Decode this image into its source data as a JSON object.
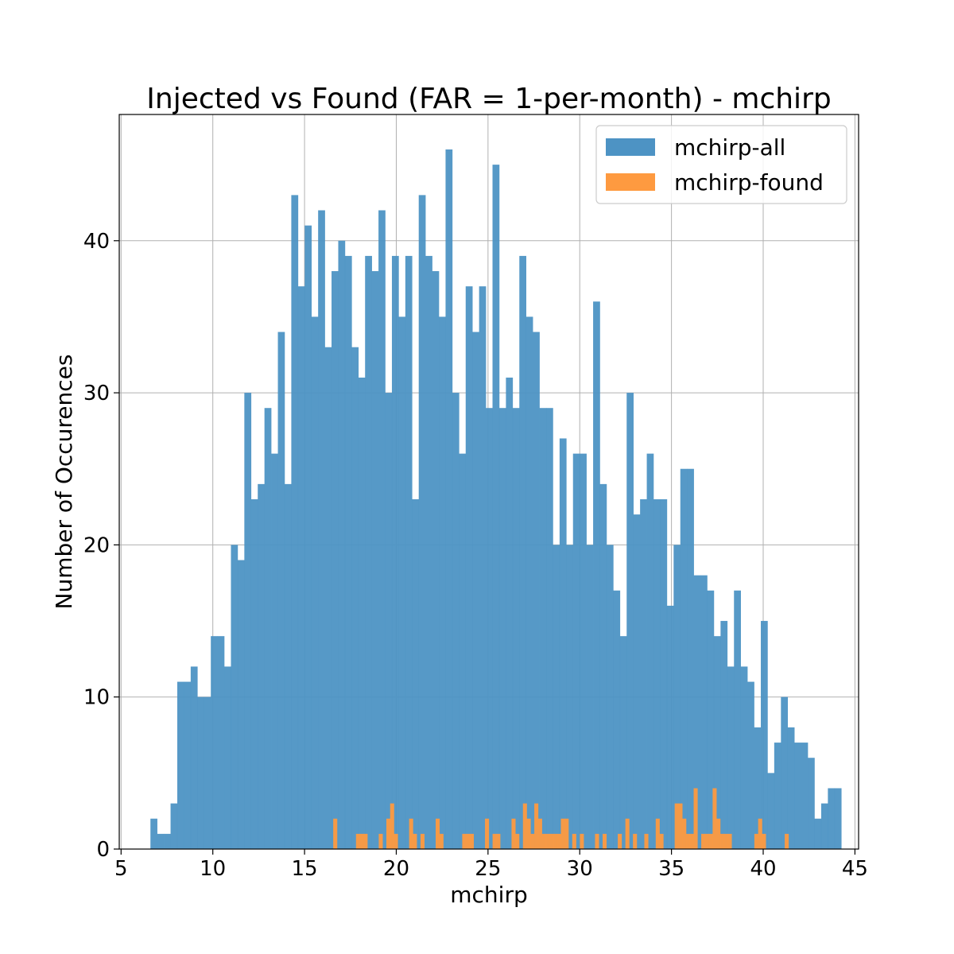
{
  "chart_data": {
    "type": "bar",
    "title": "Injected vs Found (FAR = 1-per-month) - mchirp",
    "xlabel": "mchirp",
    "ylabel": "Number of Occurences",
    "xlim": [
      4.9,
      45.2
    ],
    "ylim": [
      0,
      48.3
    ],
    "xticks": [
      5,
      10,
      15,
      20,
      25,
      30,
      35,
      40,
      45
    ],
    "yticks": [
      0,
      10,
      20,
      30,
      40
    ],
    "grid": true,
    "legend_position": "top-right",
    "bin_start": 6.6,
    "bin_width": 0.3656,
    "series": [
      {
        "name": "mchirp-all",
        "color": "#4d93c4",
        "values": [
          2,
          1,
          1,
          3,
          11,
          11,
          12,
          10,
          10,
          14,
          14,
          12,
          20,
          19,
          30,
          23,
          24,
          29,
          26,
          34,
          24,
          43,
          37,
          41,
          35,
          42,
          33,
          38,
          40,
          39,
          33,
          31,
          39,
          38,
          42,
          30,
          39,
          35,
          39,
          23,
          43,
          39,
          38,
          35,
          46,
          30,
          26,
          37,
          34,
          37,
          29,
          45,
          29,
          31,
          29,
          39,
          35,
          34,
          29,
          29,
          20,
          27,
          20,
          26,
          26,
          20,
          36,
          24,
          20,
          17,
          14,
          30,
          22,
          23,
          26,
          23,
          23,
          16,
          20,
          25,
          25,
          18,
          18,
          17,
          14,
          15,
          12,
          17,
          12,
          11,
          8,
          15,
          5,
          7,
          10,
          8,
          7,
          7,
          6,
          2,
          3,
          4,
          4
        ]
      },
      {
        "name": "mchirp-found",
        "color": "#fe9a40",
        "values": [
          0,
          0,
          0,
          0,
          0,
          0,
          0,
          0,
          0,
          0,
          0,
          0,
          0,
          0,
          0,
          0,
          0,
          0,
          0,
          0,
          0,
          0,
          0,
          0,
          2,
          0,
          0,
          0,
          0,
          0,
          1,
          1,
          1,
          0,
          0,
          0,
          1,
          0,
          2,
          3,
          1,
          0,
          0,
          0,
          2,
          1,
          0,
          1,
          0,
          0,
          0,
          2,
          1,
          0,
          0,
          0,
          0,
          0,
          1,
          1,
          1,
          0,
          0,
          0,
          2,
          0,
          1,
          1,
          0,
          0,
          0,
          2,
          1,
          0,
          3,
          2,
          1,
          3,
          2,
          1,
          1,
          1,
          1,
          1,
          2,
          2,
          0,
          1,
          0,
          1,
          0,
          0,
          0,
          1,
          0,
          1,
          0,
          0,
          0,
          1,
          0,
          2,
          0,
          1,
          0,
          0,
          1,
          0,
          0,
          2,
          1,
          0,
          0,
          0,
          3,
          3,
          2,
          1,
          1,
          4,
          0,
          1,
          1,
          1,
          4,
          2,
          1,
          1,
          1,
          0,
          0,
          0,
          0,
          0,
          0,
          1,
          2,
          1,
          0,
          0,
          0,
          0,
          0,
          1,
          0
        ]
      }
    ],
    "found_bin_start": 11.6,
    "found_bin_width": 0.2068
  }
}
